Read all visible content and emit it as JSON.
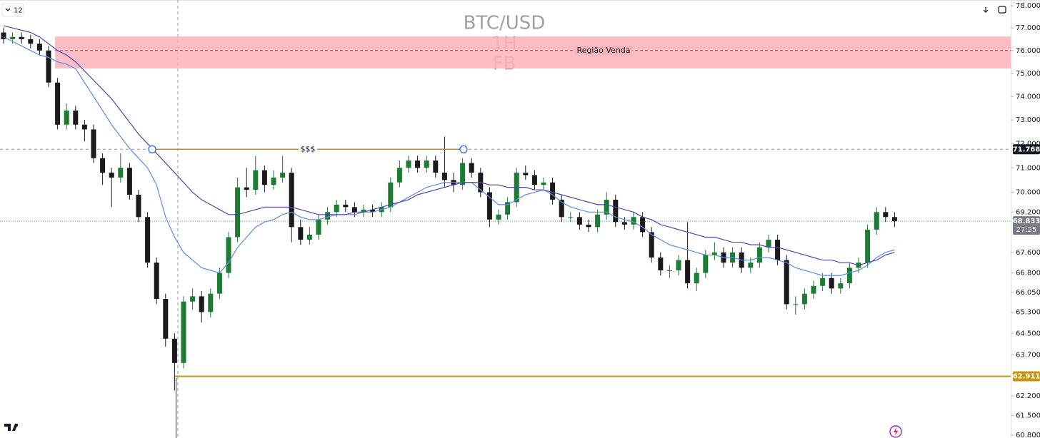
{
  "ui": {
    "indicator_count": "12"
  },
  "chart_data": {
    "type": "candlestick",
    "title": "BTC/USD",
    "timeframe": "1H",
    "subtitle": "FB",
    "log_scale": true,
    "ylim": [
      60.7,
      78.26
    ],
    "yticks": [
      {
        "value": 78,
        "label": "78.000"
      },
      {
        "value": 77,
        "label": "77.000"
      },
      {
        "value": 76,
        "label": "76.000"
      },
      {
        "value": 75,
        "label": "75.000"
      },
      {
        "value": 74,
        "label": "74.000"
      },
      {
        "value": 73,
        "label": "73.000"
      },
      {
        "value": 72,
        "label": "72.000"
      },
      {
        "value": 71,
        "label": "71.000"
      },
      {
        "value": 70,
        "label": "70.000"
      },
      {
        "value": 69.2,
        "label": "69.200"
      },
      {
        "value": 67.6,
        "label": "67.600"
      },
      {
        "value": 66.8,
        "label": "66.800"
      },
      {
        "value": 66.05,
        "label": "66.050"
      },
      {
        "value": 65.3,
        "label": "65.300"
      },
      {
        "value": 64.5,
        "label": "64.500"
      },
      {
        "value": 63.7,
        "label": "63.700"
      },
      {
        "value": 62.2,
        "label": "62.200"
      },
      {
        "value": 61.5,
        "label": "61.500"
      },
      {
        "value": 60.8,
        "label": "60.800"
      }
    ],
    "up_color": "#1e7b34",
    "down_color": "#1a1a1a",
    "open": [
      76.8,
      76.5,
      76.6,
      76.5,
      76.3,
      76.0,
      74.6,
      72.8,
      73.4,
      72.8,
      72.6,
      71.4,
      70.8,
      70.6,
      71.0,
      69.9,
      69.0,
      67.2,
      65.8,
      64.3,
      63.4,
      65.7,
      65.9,
      65.3,
      66.0,
      66.8,
      68.2,
      70.2,
      70.1,
      70.9,
      70.3,
      70.6,
      70.8,
      68.6,
      68.1,
      68.3,
      68.9,
      69.2,
      69.5,
      69.4,
      69.2,
      69.3,
      69.2,
      69.4,
      70.4,
      71.0,
      71.3,
      71.0,
      71.3,
      70.8,
      70.5,
      70.3,
      71.2,
      70.8,
      70.0,
      68.9,
      69.1,
      69.6,
      70.8,
      70.7,
      70.3,
      70.4,
      69.7,
      69.0,
      69.0,
      68.7,
      68.6,
      69.1,
      69.7,
      68.8,
      68.7,
      69.0,
      68.4,
      67.4,
      66.9,
      66.9,
      67.3,
      66.4,
      66.8,
      67.5,
      67.6,
      67.2,
      67.6,
      67.0,
      67.2,
      67.8,
      68.1,
      67.3,
      65.6,
      65.6,
      66.0,
      66.3,
      66.6,
      66.2,
      66.4,
      67.0,
      67.2,
      68.5,
      69.2,
      69.0
    ],
    "high": [
      77.0,
      76.8,
      76.8,
      76.7,
      76.5,
      76.2,
      74.8,
      73.7,
      73.6,
      73.0,
      72.8,
      71.6,
      71.0,
      71.6,
      71.2,
      70.1,
      69.2,
      67.4,
      66.0,
      64.5,
      65.9,
      66.2,
      66.1,
      66.2,
      67.0,
      68.4,
      70.6,
      71.0,
      71.5,
      71.1,
      70.9,
      71.5,
      71.0,
      68.9,
      68.6,
      69.1,
      69.4,
      69.7,
      69.7,
      69.6,
      69.5,
      69.5,
      69.6,
      70.6,
      71.3,
      71.5,
      71.5,
      71.5,
      71.5,
      72.3,
      70.8,
      71.4,
      71.4,
      71.0,
      70.2,
      69.3,
      69.8,
      71.0,
      71.1,
      70.9,
      70.6,
      70.6,
      69.9,
      69.2,
      69.2,
      68.9,
      69.3,
      70.0,
      69.9,
      69.0,
      69.2,
      69.2,
      68.6,
      67.6,
      67.1,
      67.5,
      68.8,
      67.0,
      67.7,
      68.0,
      67.8,
      67.8,
      67.8,
      67.4,
      68.0,
      68.3,
      68.3,
      67.5,
      65.9,
      66.2,
      66.5,
      66.8,
      66.8,
      66.6,
      67.2,
      67.4,
      68.7,
      69.4,
      69.4,
      69.2
    ],
    "low": [
      76.3,
      76.3,
      76.3,
      76.1,
      75.8,
      74.4,
      72.6,
      72.6,
      72.6,
      72.1,
      71.2,
      70.3,
      69.4,
      70.4,
      69.7,
      68.8,
      67.0,
      65.6,
      64.0,
      62.4,
      63.2,
      65.4,
      64.9,
      65.1,
      65.8,
      66.6,
      68.0,
      69.8,
      69.9,
      70.0,
      70.1,
      70.4,
      68.0,
      67.9,
      67.9,
      68.1,
      68.7,
      69.0,
      69.2,
      69.0,
      69.0,
      69.0,
      69.0,
      69.2,
      70.2,
      70.8,
      70.8,
      70.8,
      70.6,
      70.2,
      70.0,
      70.1,
      70.6,
      69.8,
      68.6,
      68.7,
      68.9,
      69.4,
      70.5,
      70.1,
      70.1,
      69.5,
      68.8,
      68.8,
      68.5,
      68.4,
      68.4,
      68.9,
      68.6,
      68.5,
      68.5,
      68.2,
      67.2,
      66.7,
      66.6,
      66.7,
      66.2,
      66.1,
      66.6,
      67.3,
      67.0,
      67.0,
      66.8,
      66.8,
      67.0,
      67.6,
      67.1,
      65.4,
      65.2,
      65.4,
      65.8,
      66.1,
      66.0,
      66.0,
      66.2,
      66.8,
      67.0,
      68.3,
      68.8,
      68.6
    ],
    "close": [
      76.5,
      76.6,
      76.5,
      76.3,
      76.0,
      74.6,
      72.8,
      73.4,
      72.8,
      72.6,
      71.4,
      70.8,
      70.6,
      71.0,
      69.9,
      69.0,
      67.2,
      65.8,
      64.3,
      63.4,
      65.7,
      65.9,
      65.3,
      66.0,
      66.8,
      68.2,
      70.2,
      70.1,
      70.9,
      70.3,
      70.6,
      70.8,
      68.6,
      68.1,
      68.3,
      68.9,
      69.2,
      69.5,
      69.4,
      69.2,
      69.3,
      69.2,
      69.4,
      70.4,
      71.0,
      71.3,
      71.0,
      71.3,
      70.8,
      70.5,
      70.3,
      71.2,
      70.8,
      70.0,
      68.9,
      69.1,
      69.6,
      70.8,
      70.7,
      70.3,
      70.4,
      69.7,
      69.0,
      69.0,
      68.7,
      68.6,
      69.1,
      69.7,
      68.8,
      68.7,
      69.0,
      68.4,
      67.4,
      66.9,
      66.9,
      67.3,
      66.4,
      66.8,
      67.5,
      67.6,
      67.2,
      67.6,
      67.0,
      67.2,
      67.8,
      68.1,
      67.3,
      65.6,
      65.6,
      66.0,
      66.3,
      66.6,
      66.2,
      66.4,
      67.0,
      67.2,
      68.5,
      69.2,
      69.0,
      68.833
    ],
    "series": [
      {
        "color": "#5b8de6",
        "values": [
          76.6,
          76.4,
          76.2,
          76.0,
          75.8,
          75.7,
          75.5,
          75.4,
          75.2,
          74.6,
          74.0,
          73.4,
          72.8,
          72.3,
          71.8,
          71.4,
          71.0,
          70.3,
          69.0,
          68.2,
          67.6,
          67.3,
          67.0,
          66.9,
          66.8,
          67.2,
          67.8,
          68.2,
          68.6,
          68.8,
          68.9,
          69.1,
          69.2,
          69.0,
          68.9,
          68.9,
          69.0,
          69.1,
          69.1,
          69.1,
          69.2,
          69.2,
          69.3,
          69.4,
          69.6,
          69.8,
          70.0,
          70.2,
          70.3,
          70.4,
          70.4,
          70.4,
          70.4,
          70.1,
          69.8,
          69.5,
          69.5,
          69.7,
          69.9,
          70.0,
          70.1,
          69.9,
          69.6,
          69.4,
          69.3,
          69.2,
          69.2,
          69.2,
          69.0,
          68.9,
          68.8,
          68.6,
          68.3,
          68.1,
          67.9,
          67.8,
          67.7,
          67.6,
          67.5,
          67.5,
          67.4,
          67.4,
          67.3,
          67.3,
          67.4,
          67.4,
          67.3,
          67.2,
          67.0,
          66.9,
          66.8,
          66.7,
          66.7,
          66.7,
          66.8,
          66.9,
          67.1,
          67.4,
          67.6,
          67.7
        ]
      },
      {
        "color": "#4a4aa8",
        "values": [
          77.1,
          77.0,
          76.9,
          76.8,
          76.6,
          76.3,
          76.0,
          75.8,
          75.5,
          75.1,
          74.7,
          74.3,
          73.9,
          73.4,
          72.9,
          72.4,
          72.0,
          71.6,
          71.2,
          70.8,
          70.4,
          70.0,
          69.7,
          69.5,
          69.3,
          69.1,
          69.1,
          69.2,
          69.3,
          69.4,
          69.4,
          69.4,
          69.4,
          69.3,
          69.2,
          69.1,
          69.1,
          69.1,
          69.1,
          69.2,
          69.2,
          69.3,
          69.4,
          69.5,
          69.6,
          69.7,
          69.9,
          70.0,
          70.1,
          70.2,
          70.3,
          70.4,
          70.4,
          70.4,
          70.3,
          70.3,
          70.2,
          70.2,
          70.2,
          70.1,
          70.1,
          70.0,
          69.9,
          69.8,
          69.7,
          69.6,
          69.5,
          69.5,
          69.4,
          69.3,
          69.2,
          69.0,
          68.9,
          68.7,
          68.6,
          68.5,
          68.4,
          68.3,
          68.2,
          68.2,
          68.1,
          68.0,
          68.0,
          67.9,
          67.9,
          67.8,
          67.8,
          67.7,
          67.6,
          67.5,
          67.4,
          67.3,
          67.3,
          67.2,
          67.2,
          67.1,
          67.2,
          67.3,
          67.5,
          67.6
        ]
      }
    ],
    "zone": {
      "label": "Região Venda",
      "top": 76.62,
      "bottom": 75.21,
      "mid": 76.0,
      "color": "#fbb3ba"
    },
    "ray": {
      "label": "$$$",
      "color": "#c98a12"
    },
    "price_labels": [
      {
        "value": 71.768,
        "color": "#131722"
      },
      {
        "value": 68.833,
        "countdown": "27:25",
        "color": "#787b86"
      },
      {
        "value": 62.911,
        "color": "#c8960c"
      }
    ]
  }
}
